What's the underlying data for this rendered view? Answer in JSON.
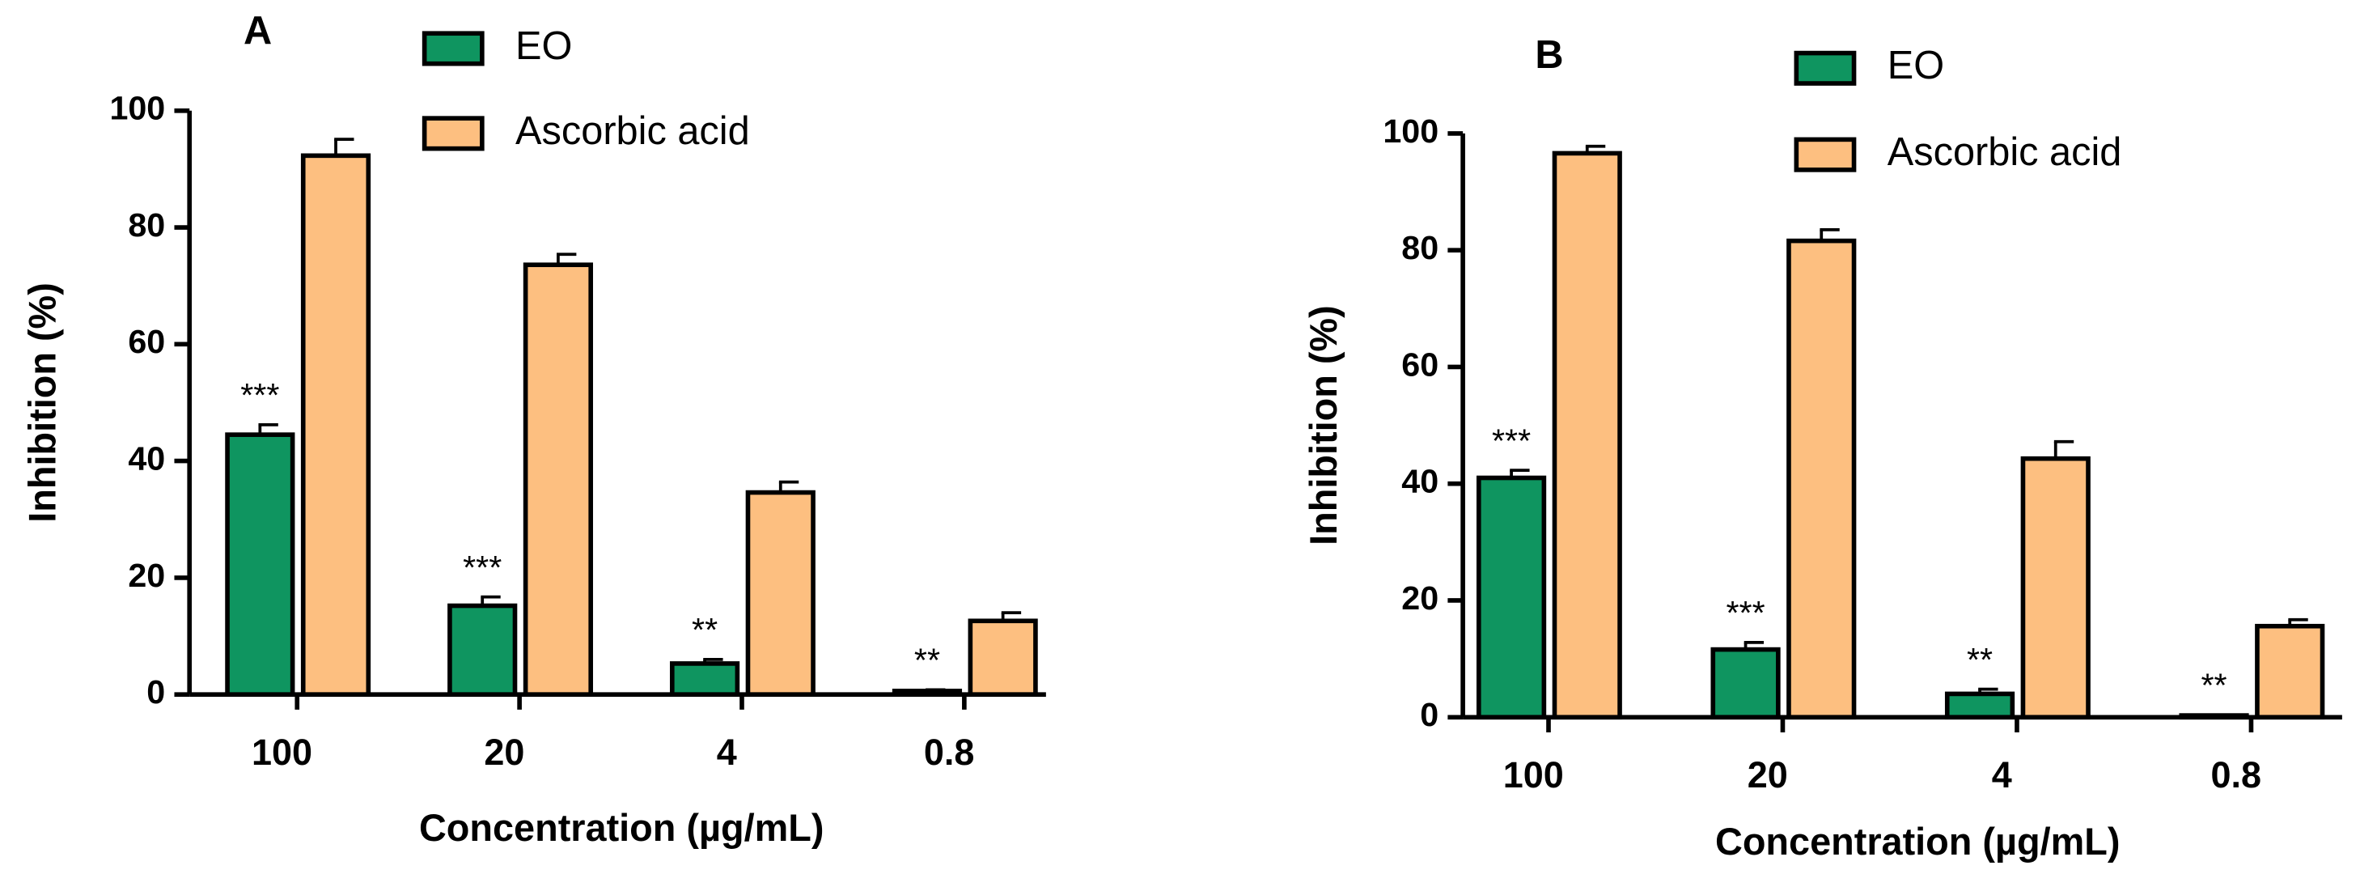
{
  "chart_data": [
    {
      "type": "bar",
      "panel": "A",
      "x_label": "Concentration (µg/mL)",
      "y_label": "Inhibition (%)",
      "categories": [
        "100",
        "20",
        "4",
        "0.8"
      ],
      "series": [
        {
          "name": "EO",
          "color": "#0f9560",
          "values": [
            44.5,
            15.2,
            5.3,
            0.6
          ],
          "errors": [
            1.7,
            1.5,
            0.7,
            0.2
          ],
          "annotations": [
            "***",
            "***",
            "**",
            "**"
          ]
        },
        {
          "name": "Ascorbic acid",
          "color": "#fdbf80",
          "values": [
            92.3,
            73.6,
            34.6,
            12.6
          ],
          "errors": [
            2.8,
            1.8,
            1.8,
            1.4
          ]
        }
      ],
      "ylim": [
        0,
        100
      ],
      "yticks": [
        0,
        20,
        40,
        60,
        80,
        100
      ]
    },
    {
      "type": "bar",
      "panel": "B",
      "x_label": "Concentration (µg/mL)",
      "y_label": "Inhibition (%)",
      "categories": [
        "100",
        "20",
        "4",
        "0.8"
      ],
      "series": [
        {
          "name": "EO",
          "color": "#0f9560",
          "values": [
            41.0,
            11.6,
            4.0,
            0.3
          ],
          "errors": [
            1.3,
            1.2,
            0.8,
            0.1
          ],
          "annotations": [
            "***",
            "***",
            "**",
            "**"
          ]
        },
        {
          "name": "Ascorbic acid",
          "color": "#fdbf80",
          "values": [
            96.6,
            81.6,
            44.3,
            15.6
          ],
          "errors": [
            1.2,
            1.9,
            2.9,
            1.1
          ]
        }
      ],
      "ylim": [
        0,
        100
      ],
      "yticks": [
        0,
        20,
        40,
        60,
        80,
        100
      ]
    }
  ]
}
